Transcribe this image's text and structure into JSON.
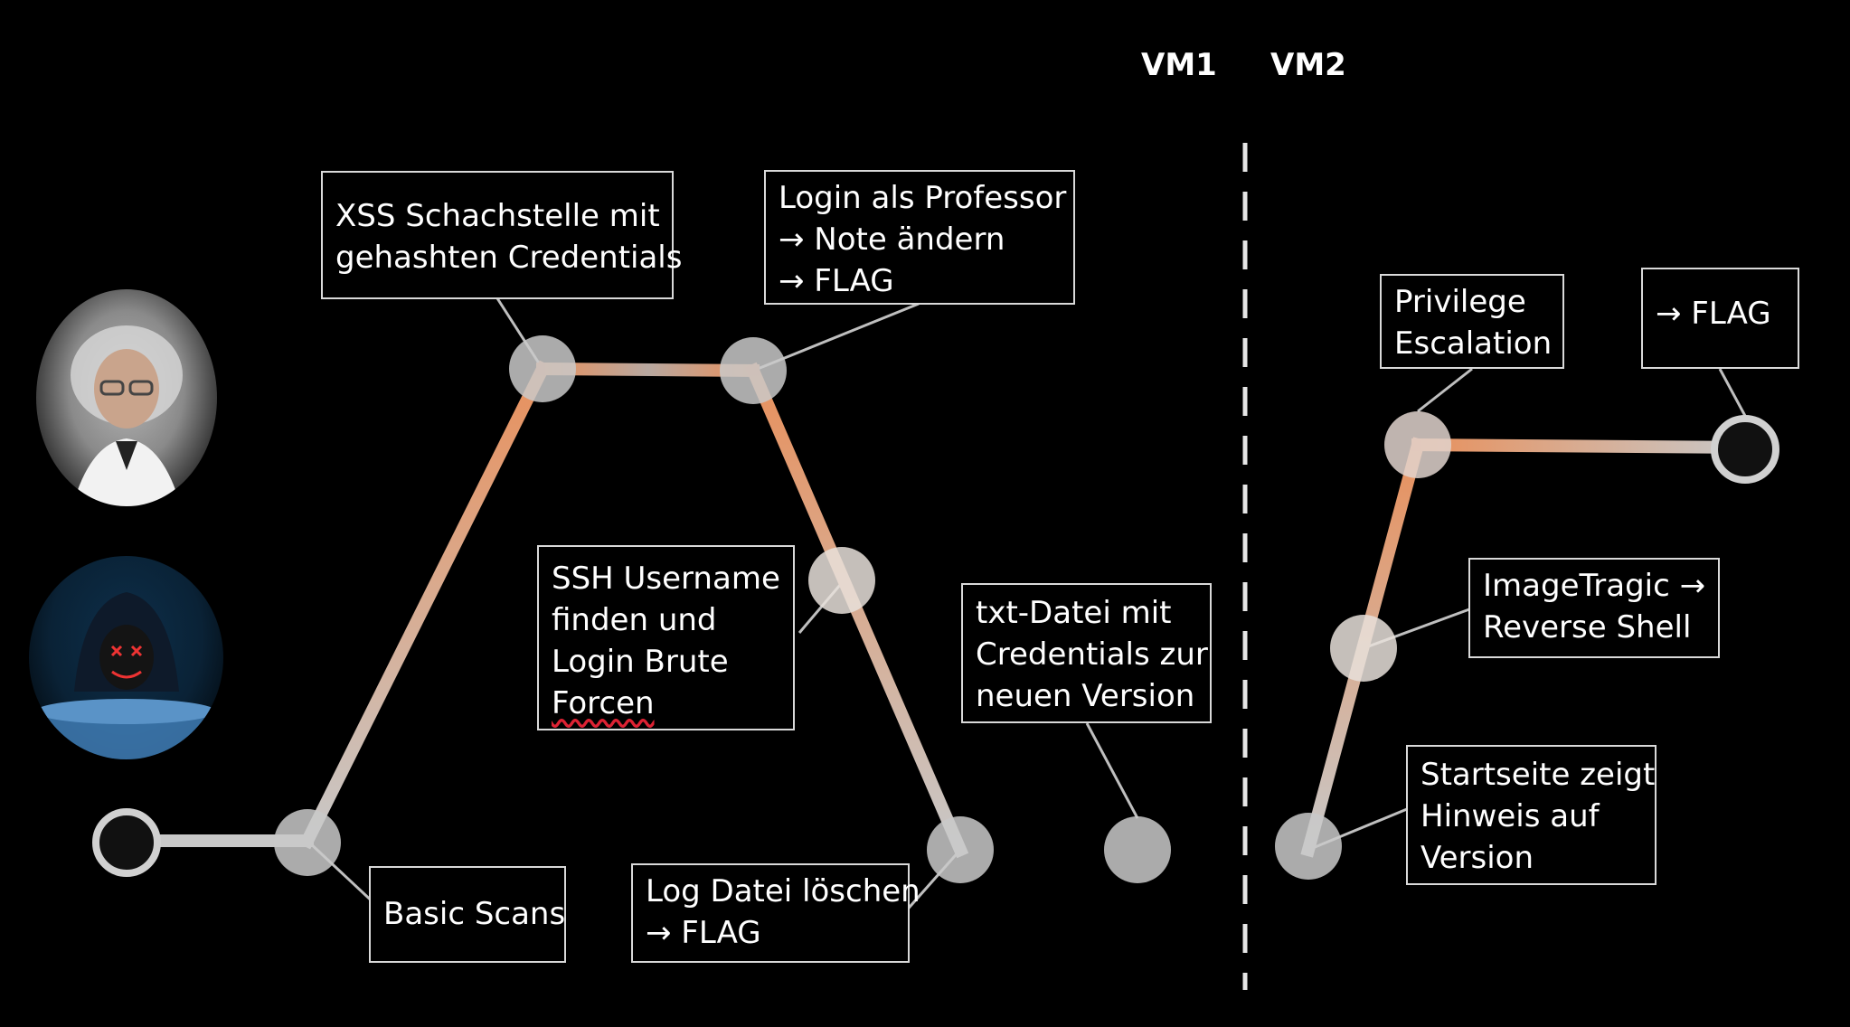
{
  "diagram": {
    "vm_labels": {
      "vm1": "VM1",
      "vm2": "VM2"
    },
    "avatars": [
      {
        "name": "professor-avatar",
        "description_icon": "scientist-portrait"
      },
      {
        "name": "hacker-avatar",
        "description_icon": "hooded-hacker"
      }
    ],
    "boxes": {
      "basic_scans": {
        "lines": [
          "Basic Scans"
        ]
      },
      "xss": {
        "lines": [
          "XSS Schachstelle mit",
          "gehashten Credentials"
        ]
      },
      "login_prof": {
        "lines": [
          "Login als Professor",
          "→ Note ändern",
          "→ FLAG"
        ]
      },
      "ssh": {
        "lines": [
          "SSH Username",
          "finden und",
          "Login Brute",
          "Forcen"
        ]
      },
      "log": {
        "lines": [
          "Log Datei löschen",
          "→ FLAG"
        ]
      },
      "txt": {
        "lines": [
          "txt-Datei mit",
          "Credentials zur",
          "neuen Version"
        ]
      },
      "startseite": {
        "lines": [
          "Startseite zeigt",
          "Hinweis auf",
          "Version"
        ]
      },
      "imagetragic": {
        "lines": [
          "ImageTragic →",
          "Reverse Shell"
        ]
      },
      "privesc": {
        "lines": [
          "Privilege",
          "Escalation"
        ]
      },
      "flag_end": {
        "lines": [
          "→ FLAG"
        ]
      }
    },
    "colors": {
      "path_orange": "#e8905c",
      "path_gray": "#c8c8c8",
      "node_gray": "#c9c9c9",
      "endpoint_fill": "#1a1a1a",
      "divider": "#e6e6e6"
    }
  }
}
